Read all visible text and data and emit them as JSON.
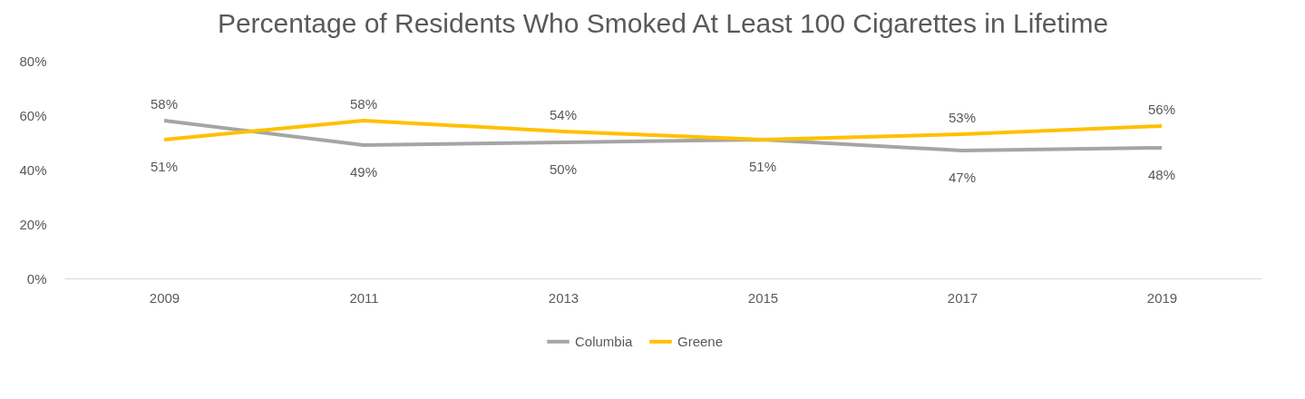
{
  "chart_data": {
    "type": "line",
    "title": "Percentage of Residents Who Smoked At Least 100 Cigarettes in Lifetime",
    "categories": [
      "2009",
      "2011",
      "2013",
      "2015",
      "2017",
      "2019"
    ],
    "series": [
      {
        "name": "Columbia",
        "color": "#a5a5a5",
        "values": [
          58,
          49,
          50,
          51,
          47,
          48
        ],
        "value_labels": [
          "58%",
          "49%",
          "50%",
          "51%",
          "47%",
          "48%"
        ]
      },
      {
        "name": "Greene",
        "color": "#ffc000",
        "values": [
          51,
          58,
          54,
          51,
          53,
          56
        ],
        "value_labels": [
          "51%",
          "58%",
          "54%",
          null,
          "53%",
          "56%"
        ]
      }
    ],
    "ylim": [
      0,
      80
    ],
    "yticks": [
      {
        "value": 0,
        "label": "0%"
      },
      {
        "value": 20,
        "label": "20%"
      },
      {
        "value": 40,
        "label": "40%"
      },
      {
        "value": 60,
        "label": "60%"
      },
      {
        "value": 80,
        "label": "80%"
      }
    ],
    "grid": false,
    "legend": "bottom",
    "marker": "none",
    "line_style": "solid"
  }
}
